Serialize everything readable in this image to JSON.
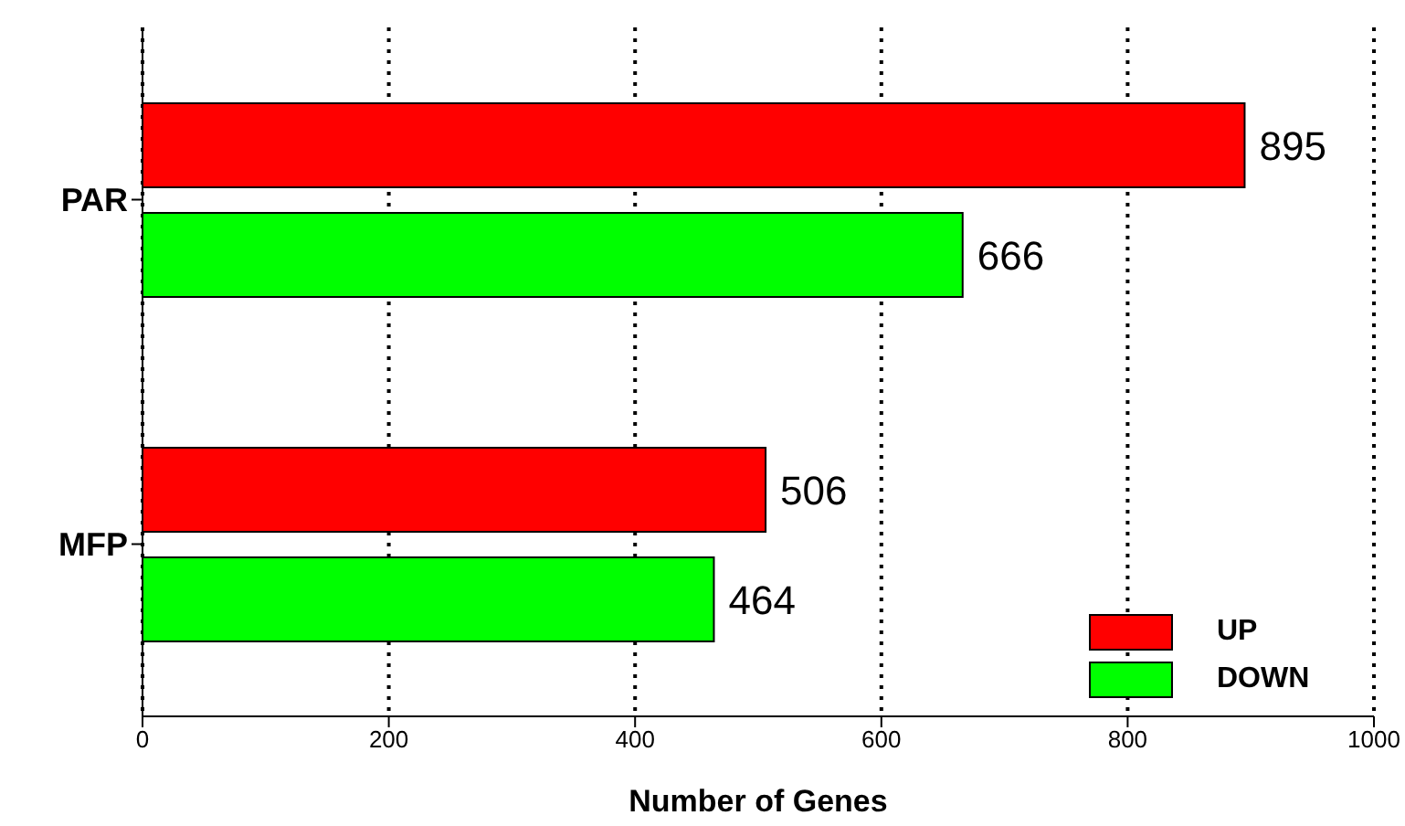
{
  "chart_data": {
    "type": "bar",
    "orientation": "horizontal",
    "xlabel": "Number of Genes",
    "categories": [
      "PAR",
      "MFP"
    ],
    "series": [
      {
        "name": "UP",
        "color": "#ff0000",
        "values": [
          895,
          506
        ]
      },
      {
        "name": "DOWN",
        "color": "#00ff00",
        "values": [
          666,
          464
        ]
      }
    ],
    "xlim": [
      0,
      1000
    ],
    "xticks": [
      0,
      200,
      400,
      600,
      800,
      1000
    ],
    "grid": "x",
    "legend": "bottom right",
    "data_labels": true
  }
}
